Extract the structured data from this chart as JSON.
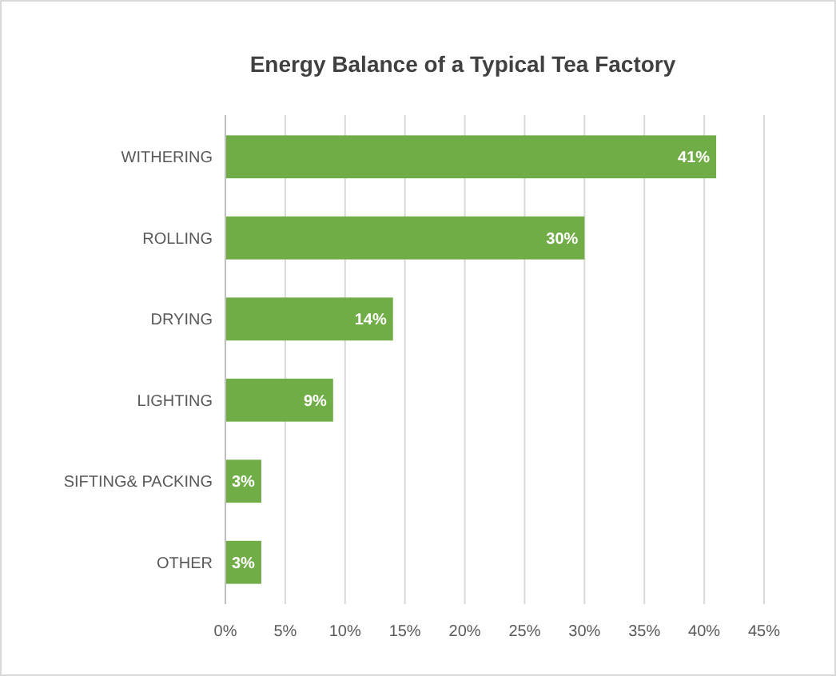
{
  "chart_data": {
    "type": "bar",
    "orientation": "horizontal",
    "title": "Energy Balance of a Typical Tea Factory",
    "categories": [
      "WITHERING",
      "ROLLING",
      "DRYING",
      "LIGHTING",
      "SIFTING& PACKING",
      "OTHER"
    ],
    "values": [
      41,
      30,
      14,
      9,
      3,
      3
    ],
    "value_labels": [
      "41%",
      "30%",
      "14%",
      "9%",
      "3%",
      "3%"
    ],
    "color": "#70ad47",
    "xlim": [
      0,
      45
    ],
    "xticks": [
      {
        "value": 0,
        "label": "0%"
      },
      {
        "value": 5,
        "label": "5%"
      },
      {
        "value": 10,
        "label": "10%"
      },
      {
        "value": 15,
        "label": "15%"
      },
      {
        "value": 20,
        "label": "20%"
      },
      {
        "value": 25,
        "label": "25%"
      },
      {
        "value": 30,
        "label": "30%"
      },
      {
        "value": 35,
        "label": "35%"
      },
      {
        "value": 40,
        "label": "40%"
      },
      {
        "value": 45,
        "label": "45%"
      }
    ],
    "grid": "x"
  }
}
